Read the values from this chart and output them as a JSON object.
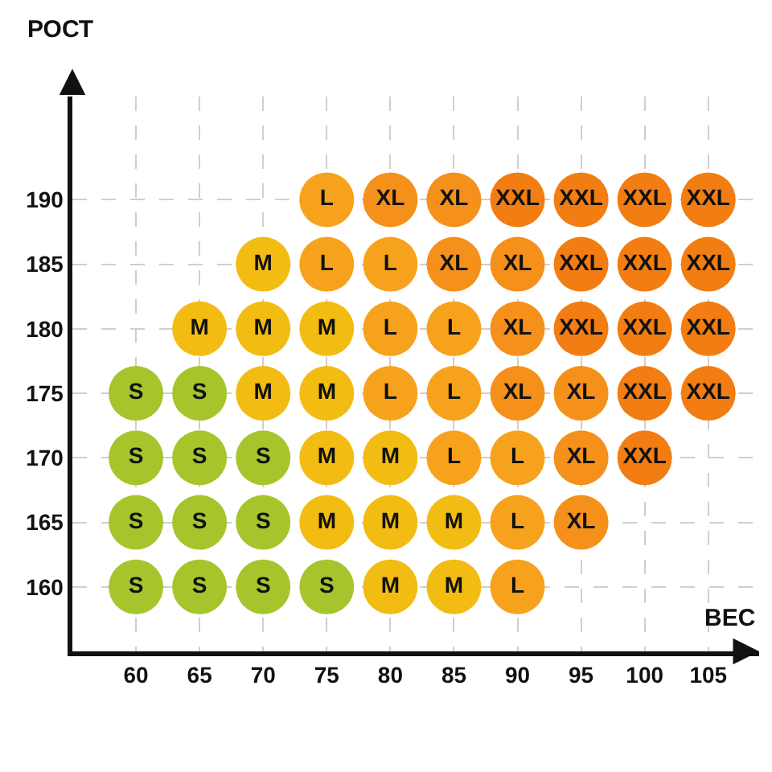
{
  "chart_data": {
    "type": "scatter",
    "xlabel": "ВЕС",
    "ylabel": "РОСТ",
    "xlim": [
      55,
      109
    ],
    "ylim": [
      155,
      198
    ],
    "xticks": [
      60,
      65,
      70,
      75,
      80,
      85,
      90,
      95,
      100,
      105
    ],
    "yticks": [
      160,
      165,
      170,
      175,
      180,
      185,
      190
    ],
    "marker": "circle",
    "grid": true,
    "series": [
      {
        "color": "#a6c52c",
        "x": [
          60,
          65,
          70,
          75,
          60,
          65,
          70,
          60,
          65,
          70,
          60,
          65
        ],
        "values": [
          160,
          160,
          160,
          160,
          165,
          165,
          165,
          170,
          170,
          170,
          175,
          175
        ],
        "value_labels": [
          "S",
          "S",
          "S",
          "S",
          "S",
          "S",
          "S",
          "S",
          "S",
          "S",
          "S",
          "S"
        ]
      },
      {
        "color": "#f2bc12",
        "x": [
          80,
          85,
          75,
          80,
          85,
          75,
          80,
          70,
          75,
          65,
          70,
          75,
          70
        ],
        "values": [
          160,
          160,
          165,
          165,
          165,
          170,
          170,
          175,
          175,
          180,
          180,
          180,
          185
        ],
        "value_labels": [
          "M",
          "M",
          "M",
          "M",
          "M",
          "M",
          "M",
          "M",
          "M",
          "M",
          "M",
          "M",
          "M"
        ]
      },
      {
        "color": "#f7a21c",
        "x": [
          90,
          90,
          85,
          90,
          80,
          85,
          80,
          85,
          75,
          80,
          75
        ],
        "values": [
          160,
          165,
          170,
          170,
          175,
          175,
          180,
          180,
          185,
          185,
          190
        ],
        "value_labels": [
          "L",
          "L",
          "L",
          "L",
          "L",
          "L",
          "L",
          "L",
          "L",
          "L",
          "L"
        ]
      },
      {
        "color": "#f5901a",
        "x": [
          95,
          95,
          90,
          95,
          90,
          85,
          90,
          80,
          85
        ],
        "values": [
          165,
          170,
          175,
          175,
          180,
          185,
          185,
          190,
          190
        ],
        "value_labels": [
          "XL",
          "XL",
          "XL",
          "XL",
          "XL",
          "XL",
          "XL",
          "XL",
          "XL"
        ]
      },
      {
        "color": "#f27d12",
        "x": [
          100,
          100,
          105,
          95,
          100,
          105,
          95,
          100,
          105,
          90,
          95,
          100,
          105
        ],
        "values": [
          170,
          175,
          175,
          180,
          180,
          180,
          185,
          185,
          185,
          190,
          190,
          190,
          190
        ],
        "value_labels": [
          "XXL",
          "XXL",
          "XXL",
          "XXL",
          "XXL",
          "XXL",
          "XXL",
          "XXL",
          "XXL",
          "XXL",
          "XXL",
          "XXL",
          "XXL"
        ]
      }
    ]
  }
}
